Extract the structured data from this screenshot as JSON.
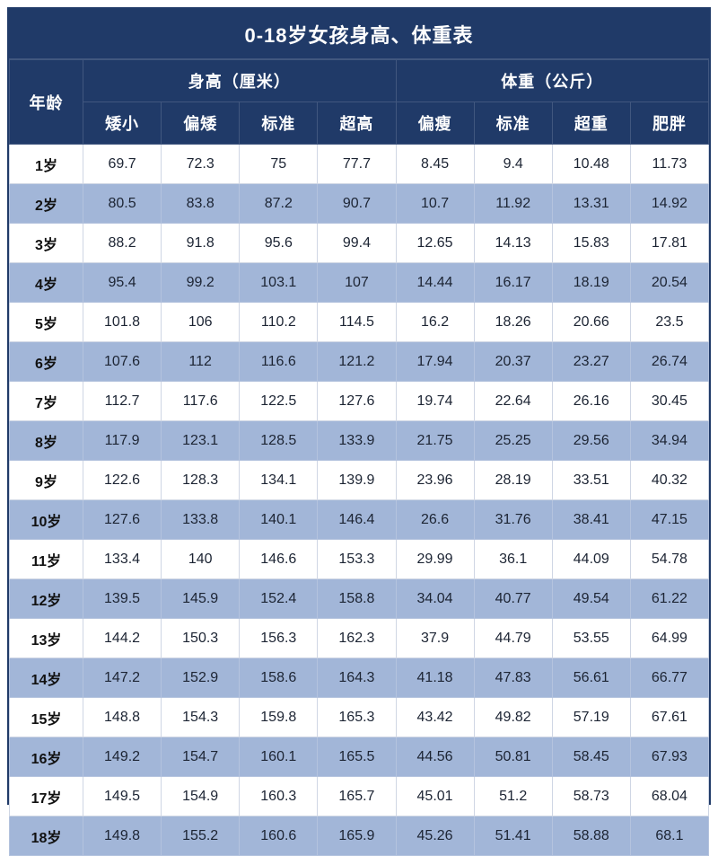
{
  "title": "0-18岁女孩身高、体重表",
  "colors": {
    "header_bg": "#203a68",
    "header_text": "#ffffff",
    "row_bg": "#ffffff",
    "row_alt_bg": "#a2b6d8",
    "grid_line": "#cfd6e4"
  },
  "chart_data": {
    "type": "table",
    "title": "0-18岁女孩身高、体重表",
    "corner_header": "年龄",
    "column_groups": [
      {
        "label": "身高（厘米）",
        "columns": [
          "矮小",
          "偏矮",
          "标准",
          "超高"
        ]
      },
      {
        "label": "体重（公斤）",
        "columns": [
          "偏瘦",
          "标准",
          "超重",
          "肥胖"
        ]
      }
    ],
    "rows": [
      {
        "age": "1岁",
        "values": [
          "69.7",
          "72.3",
          "75",
          "77.7",
          "8.45",
          "9.4",
          "10.48",
          "11.73"
        ]
      },
      {
        "age": "2岁",
        "values": [
          "80.5",
          "83.8",
          "87.2",
          "90.7",
          "10.7",
          "11.92",
          "13.31",
          "14.92"
        ]
      },
      {
        "age": "3岁",
        "values": [
          "88.2",
          "91.8",
          "95.6",
          "99.4",
          "12.65",
          "14.13",
          "15.83",
          "17.81"
        ]
      },
      {
        "age": "4岁",
        "values": [
          "95.4",
          "99.2",
          "103.1",
          "107",
          "14.44",
          "16.17",
          "18.19",
          "20.54"
        ]
      },
      {
        "age": "5岁",
        "values": [
          "101.8",
          "106",
          "110.2",
          "114.5",
          "16.2",
          "18.26",
          "20.66",
          "23.5"
        ]
      },
      {
        "age": "6岁",
        "values": [
          "107.6",
          "112",
          "116.6",
          "121.2",
          "17.94",
          "20.37",
          "23.27",
          "26.74"
        ]
      },
      {
        "age": "7岁",
        "values": [
          "112.7",
          "117.6",
          "122.5",
          "127.6",
          "19.74",
          "22.64",
          "26.16",
          "30.45"
        ]
      },
      {
        "age": "8岁",
        "values": [
          "117.9",
          "123.1",
          "128.5",
          "133.9",
          "21.75",
          "25.25",
          "29.56",
          "34.94"
        ]
      },
      {
        "age": "9岁",
        "values": [
          "122.6",
          "128.3",
          "134.1",
          "139.9",
          "23.96",
          "28.19",
          "33.51",
          "40.32"
        ]
      },
      {
        "age": "10岁",
        "values": [
          "127.6",
          "133.8",
          "140.1",
          "146.4",
          "26.6",
          "31.76",
          "38.41",
          "47.15"
        ]
      },
      {
        "age": "11岁",
        "values": [
          "133.4",
          "140",
          "146.6",
          "153.3",
          "29.99",
          "36.1",
          "44.09",
          "54.78"
        ]
      },
      {
        "age": "12岁",
        "values": [
          "139.5",
          "145.9",
          "152.4",
          "158.8",
          "34.04",
          "40.77",
          "49.54",
          "61.22"
        ]
      },
      {
        "age": "13岁",
        "values": [
          "144.2",
          "150.3",
          "156.3",
          "162.3",
          "37.9",
          "44.79",
          "53.55",
          "64.99"
        ]
      },
      {
        "age": "14岁",
        "values": [
          "147.2",
          "152.9",
          "158.6",
          "164.3",
          "41.18",
          "47.83",
          "56.61",
          "66.77"
        ]
      },
      {
        "age": "15岁",
        "values": [
          "148.8",
          "154.3",
          "159.8",
          "165.3",
          "43.42",
          "49.82",
          "57.19",
          "67.61"
        ]
      },
      {
        "age": "16岁",
        "values": [
          "149.2",
          "154.7",
          "160.1",
          "165.5",
          "44.56",
          "50.81",
          "58.45",
          "67.93"
        ]
      },
      {
        "age": "17岁",
        "values": [
          "149.5",
          "154.9",
          "160.3",
          "165.7",
          "45.01",
          "51.2",
          "58.73",
          "68.04"
        ]
      },
      {
        "age": "18岁",
        "values": [
          "149.8",
          "155.2",
          "160.6",
          "165.9",
          "45.26",
          "51.41",
          "58.88",
          "68.1"
        ]
      }
    ]
  }
}
